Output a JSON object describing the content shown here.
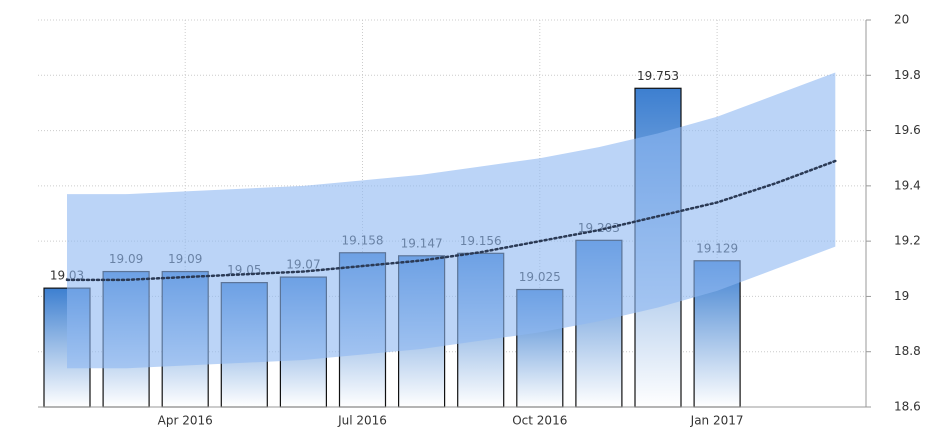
{
  "chart_data": {
    "type": "bar",
    "categories": [
      null,
      null,
      "Apr 2016",
      null,
      null,
      "Jul 2016",
      null,
      null,
      "Oct 2016",
      null,
      null,
      "Jan 2017",
      null,
      null
    ],
    "values": [
      19.03,
      19.09,
      19.09,
      19.05,
      19.07,
      19.158,
      19.147,
      19.156,
      19.025,
      19.203,
      19.753,
      19.129,
      null,
      null
    ],
    "color": "#3d7fd0",
    "trend_values": [
      19.06,
      19.06,
      19.07,
      19.08,
      19.09,
      19.11,
      19.13,
      19.16,
      19.2,
      19.24,
      19.29,
      19.34,
      19.41,
      19.49
    ],
    "trend_color": "#2b3a55",
    "band_upper": [
      19.37,
      19.37,
      19.38,
      19.39,
      19.4,
      19.42,
      19.44,
      19.47,
      19.5,
      19.54,
      19.59,
      19.65,
      19.73,
      19.81
    ],
    "band_lower": [
      18.74,
      18.74,
      18.75,
      18.76,
      18.77,
      18.79,
      18.81,
      18.84,
      18.87,
      18.91,
      18.96,
      19.02,
      19.1,
      19.18
    ],
    "band_color": "#8db8f2",
    "ylim": [
      18.6,
      20
    ],
    "yticks": [
      18.6,
      18.8,
      19,
      19.2,
      19.4,
      19.6,
      19.8,
      20
    ],
    "grid": true,
    "y_axis_side": "right"
  }
}
